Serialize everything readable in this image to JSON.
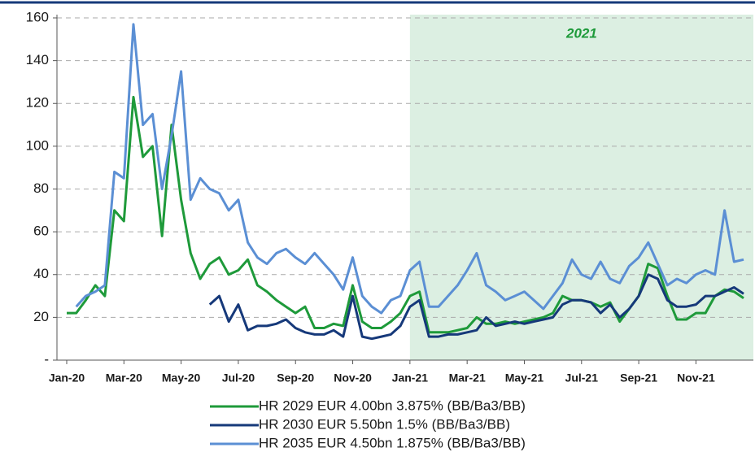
{
  "chart_data": {
    "type": "line",
    "categories": [
      "Jan-20",
      null,
      null,
      null,
      null,
      null,
      "Mar-20",
      null,
      null,
      null,
      null,
      null,
      "May-20",
      null,
      null,
      null,
      null,
      null,
      "Jul-20",
      null,
      null,
      null,
      null,
      null,
      "Sep-20",
      null,
      null,
      null,
      null,
      null,
      "Nov-20",
      null,
      null,
      null,
      null,
      null,
      "Jan-21",
      null,
      null,
      null,
      null,
      null,
      "Mar-21",
      null,
      null,
      null,
      null,
      null,
      "May-21",
      null,
      null,
      null,
      null,
      null,
      "Jul-21",
      null,
      null,
      null,
      null,
      null,
      "Sep-21",
      null,
      null,
      null,
      null,
      null,
      "Nov-21",
      null,
      null,
      null,
      null,
      null
    ],
    "series": [
      {
        "name": "HR 2029 EUR 4.00bn 3.875% (BB/Ba3/BB)",
        "color": "#1e9a3a",
        "values": [
          22,
          22,
          28,
          35,
          30,
          70,
          65,
          123,
          95,
          100,
          58,
          110,
          75,
          50,
          38,
          45,
          48,
          40,
          42,
          47,
          35,
          32,
          28,
          25,
          22,
          25,
          15,
          15,
          17,
          16,
          35,
          18,
          15,
          15,
          18,
          22,
          30,
          32,
          13,
          13,
          13,
          14,
          15,
          20,
          17,
          17,
          18,
          17,
          18,
          19,
          20,
          22,
          30,
          28,
          28,
          27,
          25,
          27,
          18,
          24,
          30,
          45,
          43,
          30,
          19,
          19,
          22,
          22,
          30,
          33,
          32,
          29
        ]
      },
      {
        "name": "HR 2030 EUR 5.50bn 1.5% (BB/Ba3/BB)",
        "color": "#16397a",
        "values": [
          null,
          null,
          null,
          null,
          null,
          null,
          null,
          null,
          null,
          null,
          null,
          null,
          null,
          null,
          null,
          26,
          30,
          18,
          26,
          14,
          16,
          16,
          17,
          19,
          15,
          13,
          12,
          12,
          14,
          11,
          30,
          11,
          10,
          11,
          12,
          16,
          25,
          28,
          11,
          11,
          12,
          12,
          13,
          14,
          20,
          16,
          17,
          18,
          17,
          18,
          19,
          20,
          26,
          28,
          28,
          27,
          22,
          26,
          20,
          24,
          30,
          40,
          38,
          28,
          25,
          25,
          26,
          30,
          30,
          32,
          34,
          31
        ]
      },
      {
        "name": "HR 2035 EUR 4.50bn 1.875% (BB/Ba3/BB)",
        "color": "#5b8fd4",
        "values": [
          null,
          25,
          30,
          32,
          35,
          88,
          85,
          157,
          110,
          115,
          80,
          105,
          135,
          75,
          85,
          80,
          78,
          70,
          75,
          55,
          48,
          45,
          50,
          52,
          48,
          45,
          50,
          45,
          40,
          33,
          48,
          30,
          25,
          22,
          28,
          30,
          42,
          46,
          25,
          25,
          30,
          35,
          42,
          50,
          35,
          32,
          28,
          30,
          32,
          28,
          24,
          30,
          36,
          47,
          40,
          38,
          46,
          38,
          36,
          44,
          48,
          55,
          45,
          35,
          38,
          36,
          40,
          42,
          40,
          70,
          46,
          47
        ]
      }
    ],
    "annotation": {
      "text": "2021",
      "start": "Jan-21"
    },
    "ylim": [
      0,
      160
    ],
    "yticks": [
      {
        "value": 0,
        "label": "-"
      },
      20,
      40,
      60,
      80,
      100,
      120,
      140,
      160
    ],
    "grid": true
  }
}
